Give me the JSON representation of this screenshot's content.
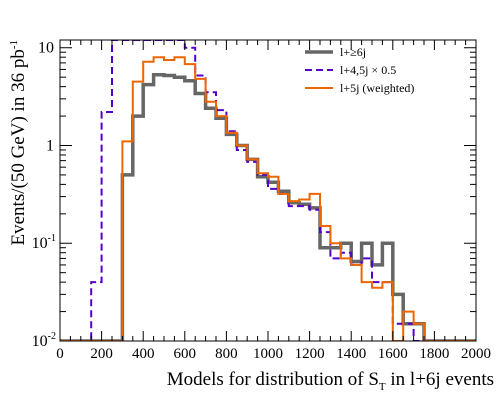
{
  "chart_data": {
    "type": "step-histogram",
    "xlabel_main": "Models for distribution of S",
    "xlabel_sub": "T",
    "xlabel_tail": " in l+6j events",
    "ylabel": "Events/(50 GeV) in 36 pb",
    "ylabel_sup": "-1",
    "xlim": [
      0,
      2000
    ],
    "ylim": [
      0.01,
      12
    ],
    "yscale": "log",
    "bin_width": 50,
    "x_ticks": [
      "0",
      "200",
      "400",
      "600",
      "800",
      "1000",
      "1200",
      "1400",
      "1600",
      "1800",
      "2000"
    ],
    "y_ticks": [
      {
        "value": 0.01,
        "base": "10",
        "exp": "-2"
      },
      {
        "value": 0.1,
        "base": "10",
        "exp": "-1"
      },
      {
        "value": 1,
        "base": "1",
        "exp": ""
      },
      {
        "value": 10,
        "base": "10",
        "exp": ""
      }
    ],
    "legend_position": "top-right",
    "series": [
      {
        "name": "l+≥6j",
        "color": "#666666",
        "style": "solid",
        "edges": [
          0,
          50,
          100,
          150,
          200,
          250,
          300,
          350,
          400,
          450,
          500,
          550,
          600,
          650,
          700,
          750,
          800,
          850,
          900,
          950,
          1000,
          1050,
          1100,
          1150,
          1200,
          1250,
          1300,
          1350,
          1400,
          1450,
          1500,
          1550,
          1600,
          1650,
          1700,
          1750,
          1800,
          1850,
          1900,
          1950,
          2000
        ],
        "values": [
          0.01,
          0.01,
          0.01,
          0.01,
          0.01,
          0.008,
          0.5,
          2.0,
          4.2,
          5.3,
          5.2,
          5.0,
          4.6,
          3.4,
          2.4,
          1.9,
          1.3,
          1.0,
          0.72,
          0.48,
          0.42,
          0.34,
          0.26,
          0.25,
          0.23,
          0.09,
          0.09,
          0.1,
          0.065,
          0.1,
          0.06,
          0.1,
          0.03,
          0.015,
          0.015,
          0.01,
          0.01,
          0.01,
          0.01,
          0.01
        ]
      },
      {
        "name": "l+4,5j × 0.5",
        "color": "#5500cc",
        "style": "dashed",
        "edges": [
          0,
          50,
          100,
          150,
          200,
          250,
          300,
          350,
          400,
          450,
          500,
          550,
          600,
          650,
          700,
          750,
          800,
          850,
          900,
          950,
          1000,
          1050,
          1100,
          1150,
          1200,
          1250,
          1300,
          1350,
          1400,
          1450,
          1500,
          1550,
          1600,
          1650,
          1700,
          1750,
          1800,
          1850,
          1900,
          1950,
          2000
        ],
        "values": [
          0.01,
          0.01,
          0.01,
          0.04,
          2.2,
          12,
          12,
          12,
          12,
          12,
          12,
          12,
          10,
          5.2,
          3.5,
          2.3,
          1.4,
          0.9,
          0.68,
          0.5,
          0.36,
          0.32,
          0.24,
          0.24,
          0.22,
          0.13,
          0.07,
          0.08,
          0.06,
          0.07,
          0.04,
          0.04,
          0.015,
          0.015,
          0.01,
          0.01,
          0.01,
          0.01,
          0.01,
          0.01
        ]
      },
      {
        "name": "l+5j (weighted)",
        "color": "#ee6600",
        "style": "solid",
        "edges": [
          0,
          50,
          100,
          150,
          200,
          250,
          300,
          350,
          400,
          450,
          500,
          550,
          600,
          650,
          700,
          750,
          800,
          850,
          900,
          950,
          1000,
          1050,
          1100,
          1150,
          1200,
          1250,
          1300,
          1350,
          1400,
          1450,
          1500,
          1550,
          1600,
          1650,
          1700,
          1750,
          1800,
          1850,
          1900,
          1950,
          2000
        ],
        "values": [
          0.01,
          0.01,
          0.01,
          0.01,
          0.01,
          0.01,
          1.1,
          4.5,
          7.2,
          8.0,
          7.5,
          8.0,
          6.8,
          4.8,
          2.8,
          2.0,
          1.35,
          1.0,
          0.72,
          0.52,
          0.48,
          0.32,
          0.27,
          0.28,
          0.32,
          0.15,
          0.1,
          0.07,
          0.06,
          0.04,
          0.035,
          0.04,
          0.01,
          0.02,
          0.015,
          0.01,
          0.01,
          0.01,
          0.01,
          0.01
        ]
      }
    ]
  }
}
